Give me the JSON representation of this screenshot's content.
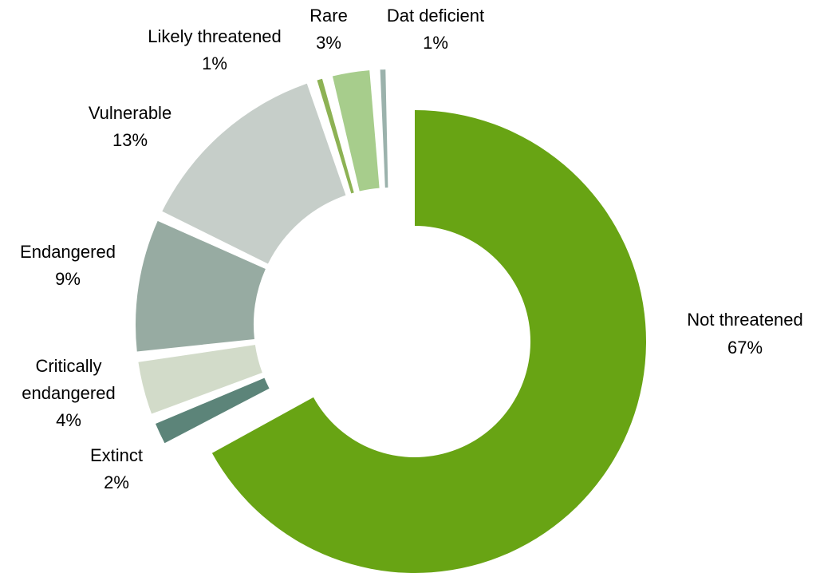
{
  "chart_data": {
    "type": "pie",
    "variant": "donut",
    "exploded": true,
    "start": "12 o'clock",
    "direction": "clockwise",
    "legend": "none",
    "unit": "%",
    "slices": [
      {
        "name": "Not threatened",
        "value": 67,
        "label": "67%",
        "color": "#68A414"
      },
      {
        "name": "Extinct",
        "value": 2,
        "label": "2%",
        "color": "#5C8479"
      },
      {
        "name": "Critically endangered",
        "value": 4,
        "label": "4%",
        "color": "#D2DBC9"
      },
      {
        "name": "Endangered",
        "value": 9,
        "label": "9%",
        "color": "#97ABA2"
      },
      {
        "name": "Vulnerable",
        "value": 13,
        "label": "13%",
        "color": "#C6CEC9"
      },
      {
        "name": "Likely threatened",
        "value": 1,
        "label": "1%",
        "color": "#8DB254"
      },
      {
        "name": "Rare",
        "value": 3,
        "label": "3%",
        "color": "#A7CD8C"
      },
      {
        "name": "Dat deficient",
        "value": 1,
        "label": "1%",
        "color": "#9BB2AC"
      }
    ]
  }
}
